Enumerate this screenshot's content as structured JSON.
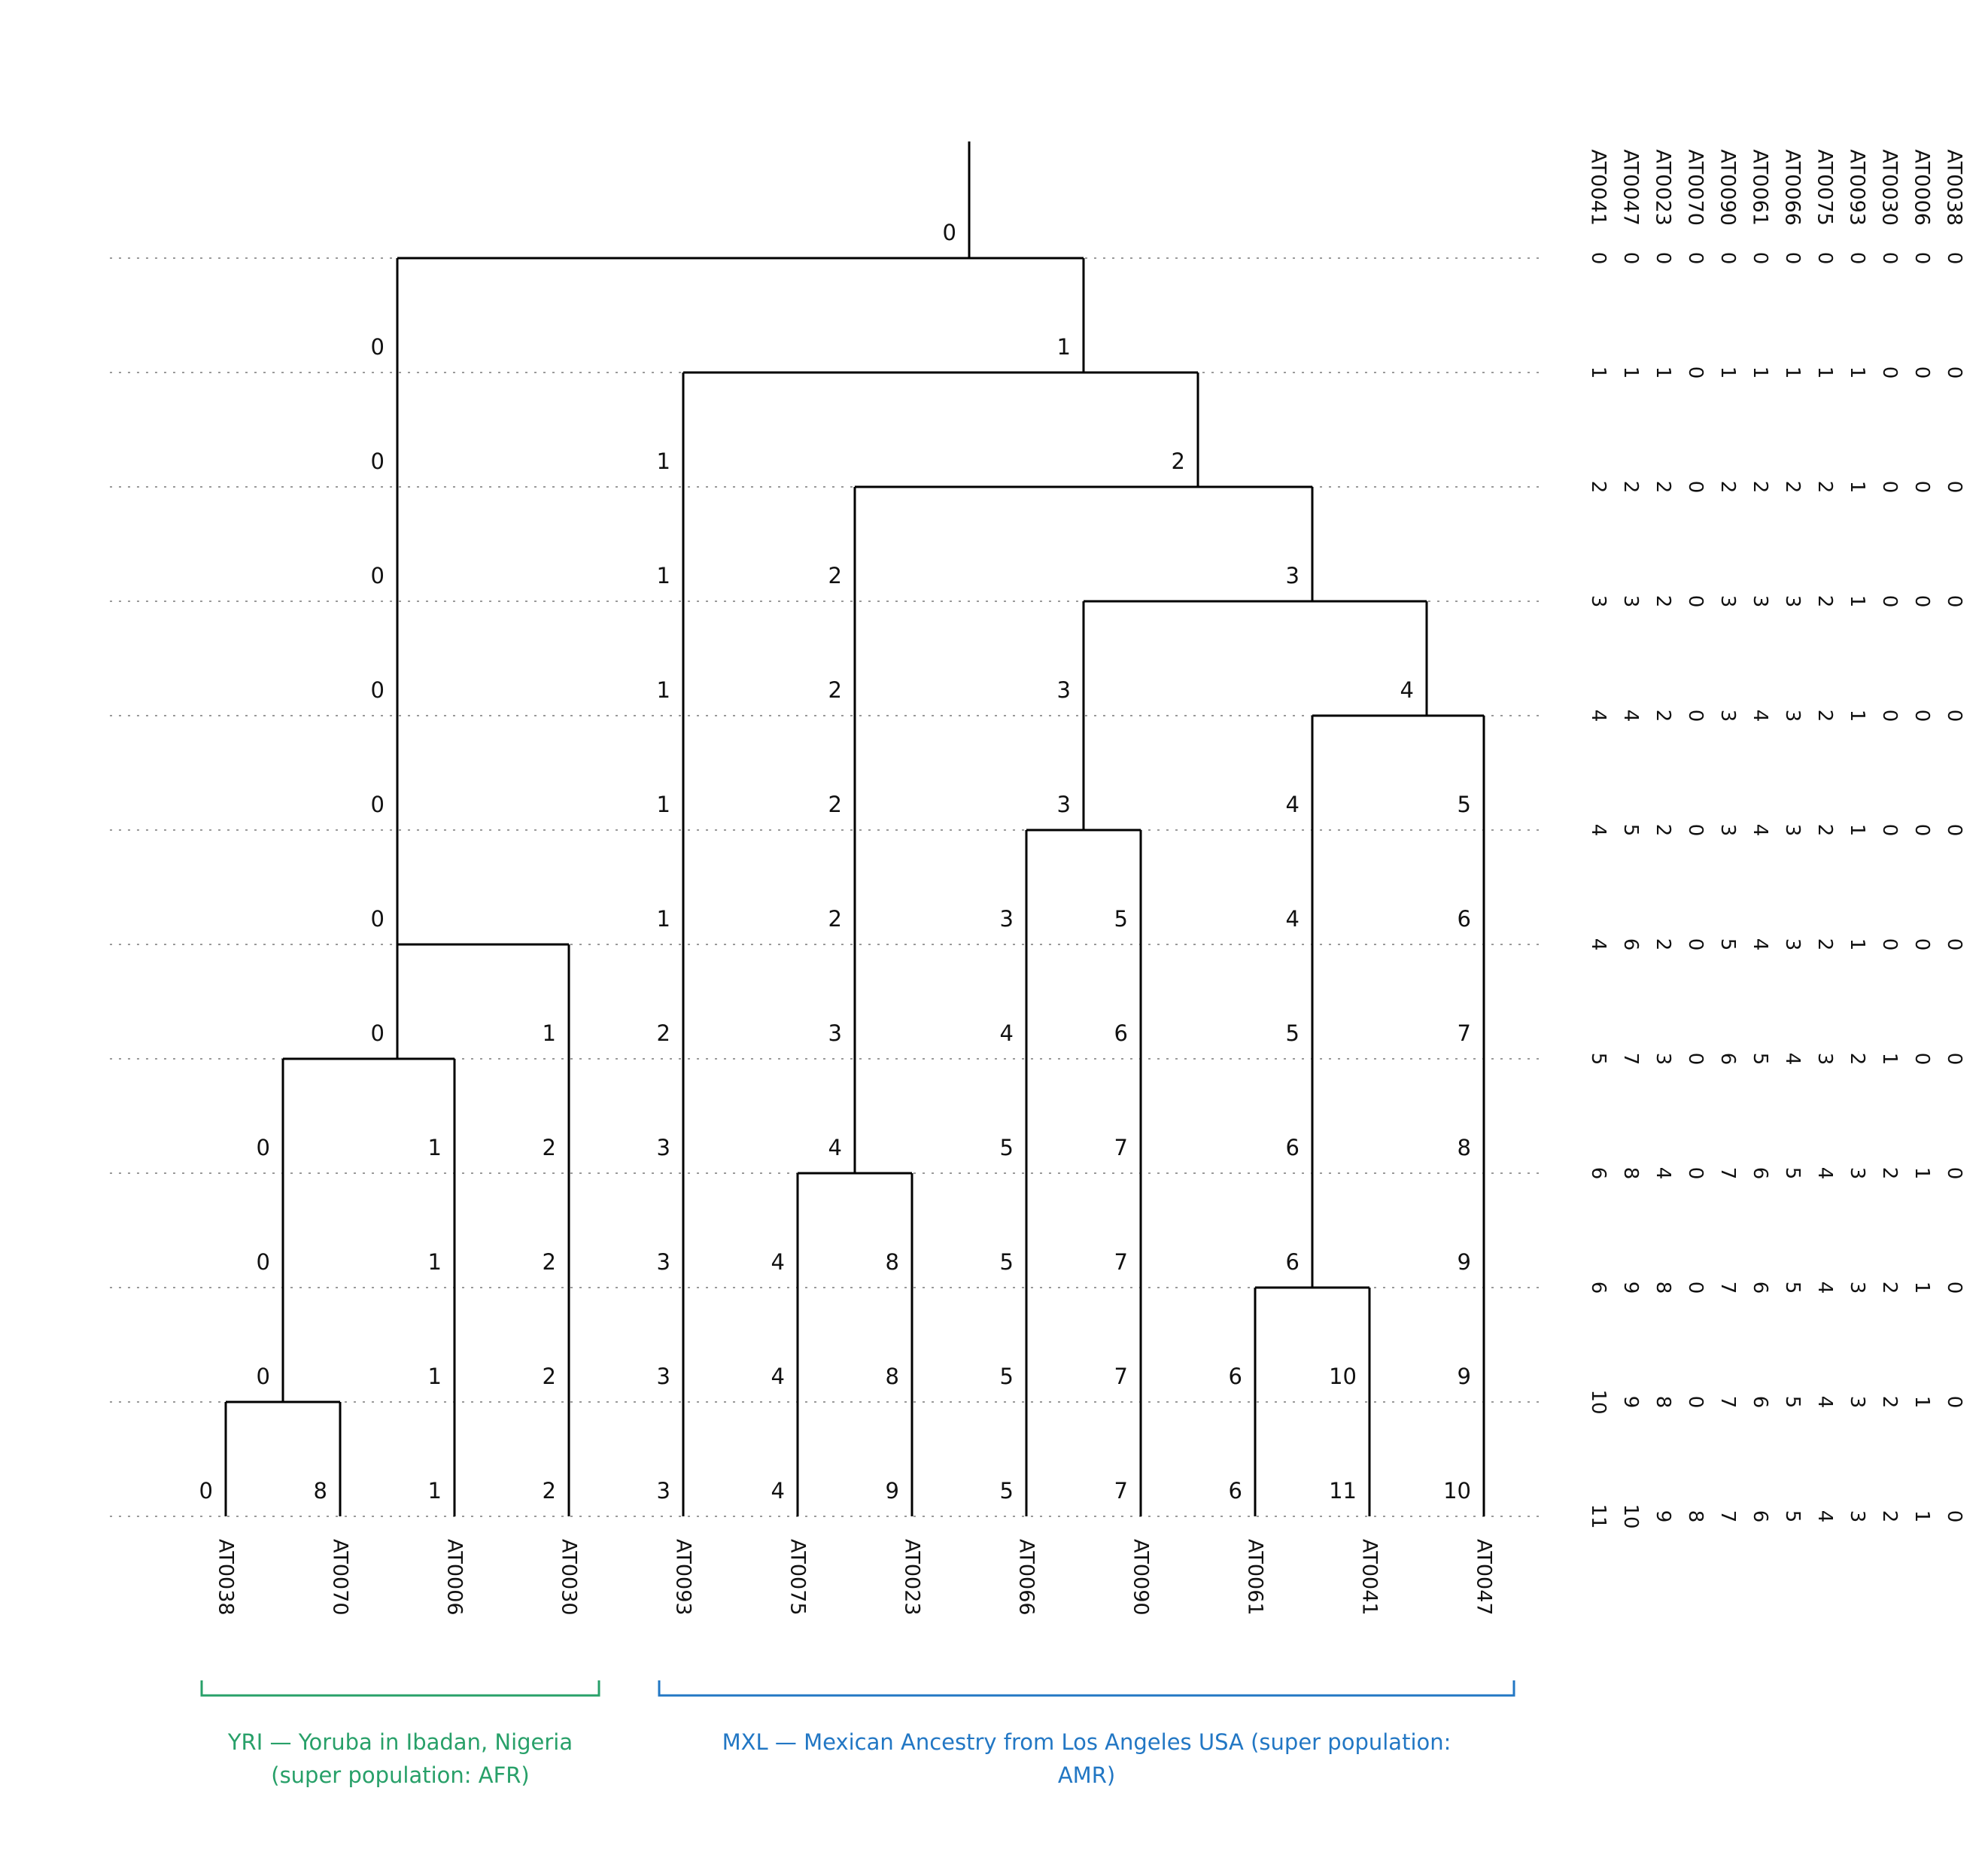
{
  "chart_data": {
    "type": "dendrogram",
    "orientation": "top-down",
    "grid": "dashed-horizontal-per-level",
    "legend_position": "none",
    "leaves": [
      "AT0038",
      "AT0070",
      "AT0006",
      "AT0030",
      "AT0093",
      "AT0075",
      "AT0023",
      "AT0066",
      "AT0090",
      "AT0061",
      "AT0041",
      "AT0047"
    ],
    "tree": {
      "split_level": 0,
      "children": [
        {
          "split_level": 6,
          "children": [
            {
              "split_level": 7,
              "children": [
                {
                  "split_level": 10,
                  "children": [
                    "AT0038",
                    "AT0070"
                  ]
                },
                "AT0006"
              ]
            },
            "AT0030"
          ]
        },
        {
          "split_level": 1,
          "children": [
            "AT0093",
            {
              "split_level": 2,
              "children": [
                {
                  "split_level": 8,
                  "children": [
                    "AT0075",
                    "AT0023"
                  ]
                },
                {
                  "split_level": 3,
                  "children": [
                    {
                      "split_level": 5,
                      "children": [
                        "AT0066",
                        "AT0090"
                      ]
                    },
                    {
                      "split_level": 4,
                      "children": [
                        {
                          "split_level": 9,
                          "children": [
                            "AT0061",
                            "AT0041"
                          ]
                        },
                        "AT0047"
                      ]
                    }
                  ]
                }
              ]
            }
          ]
        }
      ]
    },
    "state_labels": [
      [
        [
          "0",
          "s0"
        ]
      ],
      [
        [
          "0",
          "s6"
        ],
        [
          "1",
          "s1"
        ]
      ],
      [
        [
          "0",
          "s6"
        ],
        [
          "1",
          "AT0093"
        ],
        [
          "2",
          "s2"
        ]
      ],
      [
        [
          "0",
          "s6"
        ],
        [
          "1",
          "AT0093"
        ],
        [
          "2",
          "s8"
        ],
        [
          "3",
          "s3"
        ]
      ],
      [
        [
          "0",
          "s6"
        ],
        [
          "1",
          "AT0093"
        ],
        [
          "2",
          "s8"
        ],
        [
          "3",
          "s5"
        ],
        [
          "4",
          "s4"
        ]
      ],
      [
        [
          "0",
          "s6"
        ],
        [
          "1",
          "AT0093"
        ],
        [
          "2",
          "s8"
        ],
        [
          "3",
          "s5"
        ],
        [
          "4",
          "s9"
        ],
        [
          "5",
          "AT0047"
        ]
      ],
      [
        [
          "0",
          "s6"
        ],
        [
          "1",
          "AT0093"
        ],
        [
          "2",
          "s8"
        ],
        [
          "3",
          "AT0066"
        ],
        [
          "5",
          "AT0090"
        ],
        [
          "4",
          "s9"
        ],
        [
          "6",
          "AT0047"
        ]
      ],
      [
        [
          "0",
          "s7"
        ],
        [
          "1",
          "AT0030"
        ],
        [
          "2",
          "AT0093"
        ],
        [
          "3",
          "s8"
        ],
        [
          "4",
          "AT0066"
        ],
        [
          "6",
          "AT0090"
        ],
        [
          "5",
          "s9"
        ],
        [
          "7",
          "AT0047"
        ]
      ],
      [
        [
          "0",
          "s10"
        ],
        [
          "1",
          "AT0006"
        ],
        [
          "2",
          "AT0030"
        ],
        [
          "3",
          "AT0093"
        ],
        [
          "4",
          "s8"
        ],
        [
          "5",
          "AT0066"
        ],
        [
          "7",
          "AT0090"
        ],
        [
          "6",
          "s9"
        ],
        [
          "8",
          "AT0047"
        ]
      ],
      [
        [
          "0",
          "s10"
        ],
        [
          "1",
          "AT0006"
        ],
        [
          "2",
          "AT0030"
        ],
        [
          "3",
          "AT0093"
        ],
        [
          "4",
          "AT0075"
        ],
        [
          "8",
          "AT0023"
        ],
        [
          "5",
          "AT0066"
        ],
        [
          "7",
          "AT0090"
        ],
        [
          "6",
          "s9"
        ],
        [
          "9",
          "AT0047"
        ]
      ],
      [
        [
          "0",
          "s10"
        ],
        [
          "1",
          "AT0006"
        ],
        [
          "2",
          "AT0030"
        ],
        [
          "3",
          "AT0093"
        ],
        [
          "4",
          "AT0075"
        ],
        [
          "8",
          "AT0023"
        ],
        [
          "5",
          "AT0066"
        ],
        [
          "7",
          "AT0090"
        ],
        [
          "6",
          "AT0061"
        ],
        [
          "10",
          "AT0041"
        ],
        [
          "9",
          "AT0047"
        ]
      ],
      [
        [
          "0",
          "AT0038"
        ],
        [
          "8",
          "AT0070"
        ],
        [
          "1",
          "AT0006"
        ],
        [
          "2",
          "AT0030"
        ],
        [
          "3",
          "AT0093"
        ],
        [
          "4",
          "AT0075"
        ],
        [
          "9",
          "AT0023"
        ],
        [
          "5",
          "AT0066"
        ],
        [
          "7",
          "AT0090"
        ],
        [
          "6",
          "AT0061"
        ],
        [
          "11",
          "AT0041"
        ],
        [
          "10",
          "AT0047"
        ]
      ]
    ],
    "matrix": {
      "columns": [
        "AT0041",
        "AT0047",
        "AT0023",
        "AT0070",
        "AT0090",
        "AT0061",
        "AT0066",
        "AT0075",
        "AT0093",
        "AT0030",
        "AT0006",
        "AT0038"
      ],
      "rows": [
        [
          0,
          0,
          0,
          0,
          0,
          0,
          0,
          0,
          0,
          0,
          0,
          0
        ],
        [
          1,
          1,
          1,
          0,
          1,
          1,
          1,
          1,
          1,
          0,
          0,
          0
        ],
        [
          2,
          2,
          2,
          0,
          2,
          2,
          2,
          2,
          1,
          0,
          0,
          0
        ],
        [
          3,
          3,
          2,
          0,
          3,
          3,
          3,
          2,
          1,
          0,
          0,
          0
        ],
        [
          4,
          4,
          2,
          0,
          3,
          4,
          3,
          2,
          1,
          0,
          0,
          0
        ],
        [
          4,
          5,
          2,
          0,
          3,
          4,
          3,
          2,
          1,
          0,
          0,
          0
        ],
        [
          4,
          6,
          2,
          0,
          5,
          4,
          3,
          2,
          1,
          0,
          0,
          0
        ],
        [
          5,
          7,
          3,
          0,
          6,
          5,
          4,
          3,
          2,
          1,
          0,
          0
        ],
        [
          6,
          8,
          4,
          0,
          7,
          6,
          5,
          4,
          3,
          2,
          1,
          0
        ],
        [
          6,
          9,
          8,
          0,
          7,
          6,
          5,
          4,
          3,
          2,
          1,
          0
        ],
        [
          10,
          9,
          8,
          0,
          7,
          6,
          5,
          4,
          3,
          2,
          1,
          0
        ],
        [
          11,
          10,
          9,
          8,
          7,
          6,
          5,
          4,
          3,
          2,
          1,
          0
        ]
      ]
    },
    "groups": [
      {
        "code": "YRI",
        "label_lines": [
          "YRI — Yoruba in Ibadan, Nigeria",
          "(super population: AFR)"
        ],
        "color": "#28a069",
        "leaf_span": [
          0,
          3
        ]
      },
      {
        "code": "MXL",
        "label_lines": [
          "MXL — Mexican Ancestry from Los Angeles USA (super population:",
          "AMR)"
        ],
        "color": "#2277c4",
        "leaf_span": [
          4,
          11
        ]
      }
    ]
  }
}
